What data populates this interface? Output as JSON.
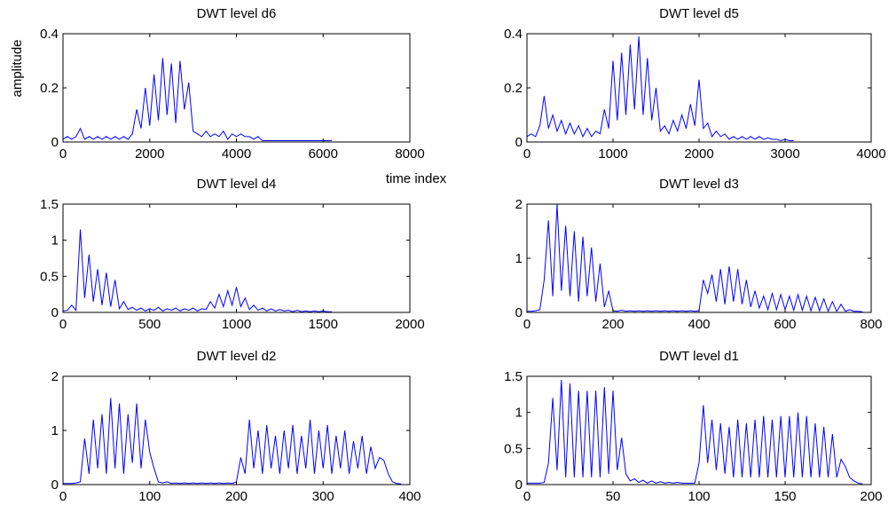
{
  "chart_data": [
    {
      "type": "line",
      "title": "DWT level d6",
      "ylabel": "amplitude",
      "xlabel": "time index",
      "color": "#0000ff",
      "xlim": [
        0,
        8000
      ],
      "xticks": [
        0,
        2000,
        4000,
        6000,
        8000
      ],
      "ylim": [
        0,
        0.4
      ],
      "yticks": [
        0,
        0.2,
        0.4
      ],
      "x": [
        0,
        100,
        200,
        300,
        400,
        500,
        600,
        700,
        800,
        900,
        1000,
        1100,
        1200,
        1300,
        1400,
        1500,
        1600,
        1700,
        1800,
        1900,
        2000,
        2100,
        2200,
        2300,
        2400,
        2500,
        2600,
        2700,
        2800,
        2900,
        3000,
        3100,
        3200,
        3300,
        3400,
        3500,
        3600,
        3700,
        3800,
        3900,
        4000,
        4100,
        4200,
        4300,
        4400,
        4500,
        4600,
        4700,
        4800,
        4900,
        5000,
        5100,
        5200,
        5300,
        5400,
        5500,
        5600,
        5700,
        5800,
        5900,
        6000,
        6100,
        6200
      ],
      "values": [
        0.01,
        0.02,
        0.01,
        0.02,
        0.05,
        0.01,
        0.02,
        0.01,
        0.02,
        0.01,
        0.02,
        0.01,
        0.02,
        0.01,
        0.02,
        0.01,
        0.03,
        0.12,
        0.05,
        0.2,
        0.06,
        0.25,
        0.08,
        0.31,
        0.1,
        0.29,
        0.07,
        0.3,
        0.12,
        0.22,
        0.04,
        0.03,
        0.02,
        0.04,
        0.02,
        0.03,
        0.02,
        0.04,
        0.01,
        0.03,
        0.02,
        0.03,
        0.02,
        0.02,
        0.01,
        0.02,
        0.005,
        0.005,
        0.005,
        0.005,
        0.005,
        0.005,
        0.005,
        0.005,
        0.005,
        0.005,
        0.005,
        0.005,
        0.005,
        0.005,
        0.005,
        0.005,
        0.005
      ]
    },
    {
      "type": "line",
      "title": "DWT level d5",
      "color": "#0000ff",
      "xlim": [
        0,
        4000
      ],
      "xticks": [
        0,
        1000,
        2000,
        3000,
        4000
      ],
      "ylim": [
        0,
        0.4
      ],
      "yticks": [
        0,
        0.2,
        0.4
      ],
      "x": [
        0,
        50,
        100,
        150,
        200,
        250,
        300,
        350,
        400,
        450,
        500,
        550,
        600,
        650,
        700,
        750,
        800,
        850,
        900,
        950,
        1000,
        1050,
        1100,
        1150,
        1200,
        1250,
        1300,
        1350,
        1400,
        1450,
        1500,
        1550,
        1600,
        1650,
        1700,
        1750,
        1800,
        1850,
        1900,
        1950,
        2000,
        2050,
        2100,
        2150,
        2200,
        2250,
        2300,
        2350,
        2400,
        2450,
        2500,
        2550,
        2600,
        2650,
        2700,
        2750,
        2800,
        2850,
        2900,
        2950,
        3000,
        3050,
        3100
      ],
      "values": [
        0.02,
        0.03,
        0.02,
        0.06,
        0.17,
        0.05,
        0.1,
        0.04,
        0.08,
        0.03,
        0.07,
        0.03,
        0.06,
        0.02,
        0.05,
        0.02,
        0.04,
        0.03,
        0.12,
        0.05,
        0.3,
        0.08,
        0.33,
        0.1,
        0.36,
        0.12,
        0.39,
        0.1,
        0.31,
        0.08,
        0.2,
        0.04,
        0.06,
        0.03,
        0.08,
        0.04,
        0.1,
        0.05,
        0.14,
        0.06,
        0.23,
        0.05,
        0.07,
        0.02,
        0.04,
        0.02,
        0.03,
        0.01,
        0.02,
        0.01,
        0.02,
        0.01,
        0.02,
        0.01,
        0.02,
        0.01,
        0.015,
        0.01,
        0.01,
        0.005,
        0.01,
        0.005,
        0.005
      ]
    },
    {
      "type": "line",
      "title": "DWT level d4",
      "color": "#0000ff",
      "xlim": [
        0,
        2000
      ],
      "xticks": [
        0,
        500,
        1000,
        1500,
        2000
      ],
      "ylim": [
        0,
        1.5
      ],
      "yticks": [
        0,
        0.5,
        1,
        1.5
      ],
      "x": [
        0,
        25,
        50,
        75,
        100,
        125,
        150,
        175,
        200,
        225,
        250,
        275,
        300,
        325,
        350,
        375,
        400,
        425,
        450,
        475,
        500,
        525,
        550,
        575,
        600,
        625,
        650,
        675,
        700,
        725,
        750,
        775,
        800,
        825,
        850,
        875,
        900,
        925,
        950,
        975,
        1000,
        1025,
        1050,
        1075,
        1100,
        1125,
        1150,
        1175,
        1200,
        1225,
        1250,
        1275,
        1300,
        1325,
        1350,
        1375,
        1400,
        1425,
        1450,
        1475,
        1500,
        1525,
        1550
      ],
      "values": [
        0.02,
        0.03,
        0.1,
        0.03,
        1.15,
        0.2,
        0.8,
        0.15,
        0.6,
        0.1,
        0.55,
        0.08,
        0.45,
        0.05,
        0.15,
        0.04,
        0.07,
        0.03,
        0.06,
        0.02,
        0.05,
        0.03,
        0.07,
        0.02,
        0.05,
        0.03,
        0.06,
        0.02,
        0.05,
        0.03,
        0.06,
        0.02,
        0.05,
        0.04,
        0.15,
        0.06,
        0.25,
        0.08,
        0.3,
        0.1,
        0.35,
        0.08,
        0.2,
        0.04,
        0.1,
        0.03,
        0.06,
        0.02,
        0.05,
        0.02,
        0.04,
        0.02,
        0.03,
        0.01,
        0.03,
        0.01,
        0.02,
        0.01,
        0.02,
        0.01,
        0.02,
        0.01,
        0.01
      ]
    },
    {
      "type": "line",
      "title": "DWT level d3",
      "color": "#0000ff",
      "xlim": [
        0,
        800
      ],
      "xticks": [
        0,
        200,
        400,
        600,
        800
      ],
      "ylim": [
        0,
        2
      ],
      "yticks": [
        0,
        1,
        2
      ],
      "x": [
        0,
        10,
        20,
        30,
        40,
        50,
        60,
        70,
        80,
        90,
        100,
        110,
        120,
        130,
        140,
        150,
        160,
        170,
        180,
        190,
        200,
        210,
        220,
        230,
        240,
        250,
        260,
        270,
        280,
        290,
        300,
        310,
        320,
        330,
        340,
        350,
        360,
        370,
        380,
        390,
        400,
        410,
        420,
        430,
        440,
        450,
        460,
        470,
        480,
        490,
        500,
        510,
        520,
        530,
        540,
        550,
        560,
        570,
        580,
        590,
        600,
        610,
        620,
        630,
        640,
        650,
        660,
        670,
        680,
        690,
        700,
        710,
        720,
        730,
        740,
        750,
        760,
        770,
        780
      ],
      "values": [
        0.02,
        0.02,
        0.03,
        0.05,
        0.6,
        1.7,
        0.3,
        2.0,
        0.4,
        1.6,
        0.3,
        1.5,
        0.2,
        1.4,
        0.3,
        1.2,
        0.2,
        0.9,
        0.1,
        0.4,
        0.03,
        0.02,
        0.04,
        0.02,
        0.03,
        0.02,
        0.03,
        0.02,
        0.03,
        0.02,
        0.03,
        0.02,
        0.03,
        0.02,
        0.03,
        0.02,
        0.03,
        0.02,
        0.03,
        0.02,
        0.03,
        0.6,
        0.35,
        0.7,
        0.2,
        0.8,
        0.15,
        0.85,
        0.2,
        0.8,
        0.15,
        0.6,
        0.1,
        0.4,
        0.08,
        0.3,
        0.05,
        0.35,
        0.05,
        0.33,
        0.05,
        0.3,
        0.04,
        0.33,
        0.04,
        0.3,
        0.03,
        0.28,
        0.03,
        0.25,
        0.02,
        0.2,
        0.02,
        0.15,
        0.02,
        0.05,
        0.02,
        0.02,
        0.01
      ]
    },
    {
      "type": "line",
      "title": "DWT level d2",
      "color": "#0000ff",
      "xlim": [
        0,
        400
      ],
      "xticks": [
        0,
        100,
        200,
        300,
        400
      ],
      "ylim": [
        0,
        2
      ],
      "yticks": [
        0,
        1,
        2
      ],
      "x": [
        0,
        5,
        10,
        15,
        20,
        25,
        30,
        35,
        40,
        45,
        50,
        55,
        60,
        65,
        70,
        75,
        80,
        85,
        90,
        95,
        100,
        105,
        110,
        115,
        120,
        125,
        130,
        135,
        140,
        145,
        150,
        155,
        160,
        165,
        170,
        175,
        180,
        185,
        190,
        195,
        200,
        205,
        210,
        215,
        220,
        225,
        230,
        235,
        240,
        245,
        250,
        255,
        260,
        265,
        270,
        275,
        280,
        285,
        290,
        295,
        300,
        305,
        310,
        315,
        320,
        325,
        330,
        335,
        340,
        345,
        350,
        355,
        360,
        365,
        370,
        375,
        380,
        385,
        390
      ],
      "values": [
        0.02,
        0.02,
        0.02,
        0.03,
        0.05,
        0.85,
        0.2,
        1.2,
        0.3,
        1.3,
        0.2,
        1.6,
        0.3,
        1.5,
        0.2,
        1.3,
        0.4,
        1.5,
        0.3,
        1.2,
        0.6,
        0.3,
        0.05,
        0.03,
        0.05,
        0.02,
        0.03,
        0.02,
        0.03,
        0.02,
        0.03,
        0.02,
        0.03,
        0.02,
        0.03,
        0.02,
        0.03,
        0.02,
        0.03,
        0.02,
        0.05,
        0.5,
        0.2,
        1.2,
        0.3,
        1.0,
        0.2,
        1.1,
        0.3,
        0.9,
        0.2,
        1.0,
        0.3,
        1.1,
        0.2,
        0.9,
        0.3,
        1.2,
        0.2,
        1.0,
        0.3,
        1.1,
        0.2,
        0.9,
        0.3,
        1.0,
        0.2,
        0.8,
        0.3,
        0.9,
        0.2,
        0.7,
        0.3,
        0.5,
        0.45,
        0.2,
        0.05,
        0.02,
        0.01
      ]
    },
    {
      "type": "line",
      "title": "DWT level d1",
      "color": "#0000ff",
      "xlim": [
        0,
        200
      ],
      "xticks": [
        0,
        50,
        100,
        150,
        200
      ],
      "ylim": [
        0,
        1.5
      ],
      "yticks": [
        0,
        0.5,
        1,
        1.5
      ],
      "x": [
        0,
        2.5,
        5,
        7.5,
        10,
        12.5,
        15,
        17.5,
        20,
        22.5,
        25,
        27.5,
        30,
        32.5,
        35,
        37.5,
        40,
        42.5,
        45,
        47.5,
        50,
        52.5,
        55,
        57.5,
        60,
        62.5,
        65,
        67.5,
        70,
        72.5,
        75,
        77.5,
        80,
        82.5,
        85,
        87.5,
        90,
        92.5,
        95,
        97.5,
        100,
        102.5,
        105,
        107.5,
        110,
        112.5,
        115,
        117.5,
        120,
        122.5,
        125,
        127.5,
        130,
        132.5,
        135,
        137.5,
        140,
        142.5,
        145,
        147.5,
        150,
        152.5,
        155,
        157.5,
        160,
        162.5,
        165,
        167.5,
        170,
        172.5,
        175,
        177.5,
        180,
        182.5,
        185,
        187.5,
        190,
        192.5,
        195
      ],
      "values": [
        0.02,
        0.02,
        0.02,
        0.02,
        0.03,
        0.3,
        1.2,
        0.2,
        1.45,
        0.1,
        1.4,
        0.1,
        1.3,
        0.1,
        1.3,
        0.1,
        1.3,
        0.1,
        1.35,
        0.15,
        1.3,
        0.2,
        0.65,
        0.15,
        0.05,
        0.08,
        0.03,
        0.06,
        0.02,
        0.05,
        0.02,
        0.04,
        0.02,
        0.03,
        0.02,
        0.03,
        0.02,
        0.02,
        0.02,
        0.02,
        0.3,
        1.1,
        0.3,
        0.9,
        0.2,
        0.85,
        0.15,
        0.8,
        0.1,
        0.9,
        0.1,
        0.85,
        0.1,
        0.9,
        0.1,
        0.95,
        0.1,
        0.9,
        0.1,
        0.95,
        0.1,
        0.95,
        0.1,
        1.0,
        0.1,
        0.95,
        0.1,
        0.85,
        0.1,
        0.8,
        0.1,
        0.7,
        0.1,
        0.35,
        0.25,
        0.1,
        0.05,
        0.02,
        0.01
      ]
    }
  ]
}
